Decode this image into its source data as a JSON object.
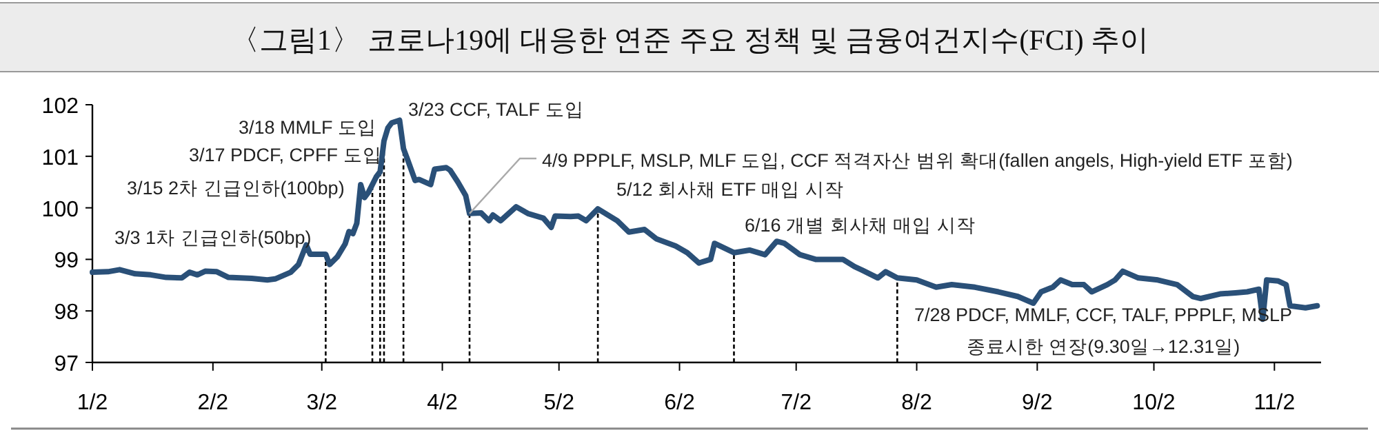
{
  "chart_data": {
    "type": "line",
    "title": "〈그림1〉 코로나19에 대응한 연준 주요 정책 및 금융여건지수(FCI) 추이",
    "color": "#2a5078",
    "marker": "none",
    "line_style": "solid",
    "grid": false,
    "legend": false,
    "x": [
      "--01-02",
      "--01-06",
      "--01-09",
      "--01-13",
      "--01-17",
      "--01-21",
      "--01-25",
      "--01-27",
      "--01-29",
      "--01-31",
      "--02-03",
      "--02-06",
      "--02-12",
      "--02-16",
      "--02-18",
      "--02-22",
      "--02-24",
      "--02-26",
      "--02-27",
      "--03-03",
      "--03-04",
      "--03-06",
      "--03-08",
      "--03-09",
      "--03-10",
      "--03-11",
      "--03-12",
      "--03-13",
      "--03-14",
      "--03-16",
      "--03-17",
      "--03-18",
      "--03-19",
      "--03-20",
      "--03-22",
      "--03-23",
      "--03-24",
      "--03-26",
      "--03-27",
      "--03-30",
      "--03-31",
      "--04-03",
      "--04-04",
      "--04-06",
      "--04-08",
      "--04-09",
      "--04-12",
      "--04-14",
      "--04-15",
      "--04-17",
      "--04-21",
      "--04-24",
      "--04-28",
      "--04-30",
      "--05-01",
      "--05-05",
      "--05-07",
      "--05-09",
      "--05-12",
      "--05-17",
      "--05-20",
      "--05-24",
      "--05-27",
      "--06-01",
      "--06-04",
      "--06-07",
      "--06-10",
      "--06-11",
      "--06-16",
      "--06-20",
      "--06-24",
      "--06-27",
      "--06-29",
      "--07-03",
      "--07-07",
      "--07-14",
      "--07-17",
      "--07-19",
      "--07-23",
      "--07-25",
      "--07-28",
      "--08-02",
      "--08-07",
      "--08-11",
      "--08-17",
      "--08-23",
      "--08-28",
      "--09-01",
      "--09-03",
      "--09-06",
      "--09-08",
      "--09-11",
      "--09-14",
      "--09-16",
      "--09-20",
      "--09-22",
      "--09-24",
      "--09-28",
      "--10-03",
      "--10-08",
      "--10-12",
      "--10-14",
      "--10-19",
      "--10-23",
      "--10-26",
      "--10-29",
      "--10-30",
      "--10-31",
      "--11-03",
      "--11-05",
      "--11-06",
      "--11-10",
      "--11-13"
    ],
    "values": [
      98.75,
      98.76,
      98.8,
      98.72,
      98.7,
      98.65,
      98.64,
      98.75,
      98.7,
      98.77,
      98.76,
      98.65,
      98.63,
      98.6,
      98.62,
      98.75,
      98.9,
      99.28,
      99.1,
      99.1,
      98.9,
      99.05,
      99.3,
      99.54,
      99.5,
      99.7,
      100.45,
      100.2,
      100.3,
      100.6,
      100.7,
      101.3,
      101.55,
      101.65,
      101.7,
      101.15,
      100.95,
      100.53,
      100.55,
      100.45,
      100.75,
      100.78,
      100.73,
      100.5,
      100.24,
      99.89,
      99.9,
      99.75,
      99.86,
      99.75,
      100.02,
      99.89,
      99.8,
      99.62,
      99.84,
      99.83,
      99.84,
      99.75,
      99.98,
      99.75,
      99.53,
      99.58,
      99.4,
      99.26,
      99.13,
      98.93,
      99.0,
      99.31,
      99.13,
      99.18,
      99.09,
      99.35,
      99.31,
      99.09,
      99.0,
      99.0,
      98.86,
      98.79,
      98.64,
      98.76,
      98.64,
      98.6,
      98.46,
      98.51,
      98.46,
      98.37,
      98.28,
      98.15,
      98.37,
      98.46,
      98.6,
      98.51,
      98.51,
      98.37,
      98.51,
      98.6,
      98.77,
      98.64,
      98.6,
      98.51,
      98.28,
      98.24,
      98.33,
      98.35,
      98.37,
      98.42,
      97.84,
      98.6,
      98.58,
      98.51,
      98.1,
      98.06,
      98.1
    ],
    "xlim": [
      "--01-02",
      "--11-14"
    ],
    "xticks": [
      {
        "value": "--01-02",
        "label": "1/2"
      },
      {
        "value": "--02-02",
        "label": "2/2"
      },
      {
        "value": "--03-02",
        "label": "3/2"
      },
      {
        "value": "--04-02",
        "label": "4/2"
      },
      {
        "value": "--05-02",
        "label": "5/2"
      },
      {
        "value": "--06-02",
        "label": "6/2"
      },
      {
        "value": "--07-02",
        "label": "7/2"
      },
      {
        "value": "--08-02",
        "label": "8/2"
      },
      {
        "value": "--09-02",
        "label": "9/2"
      },
      {
        "value": "--10-02",
        "label": "10/2"
      },
      {
        "value": "--11-02",
        "label": "11/2"
      }
    ],
    "ylim": [
      97,
      102
    ],
    "yticks": [
      97,
      98,
      99,
      100,
      101,
      102
    ],
    "ref_lines": [
      {
        "axis": "x",
        "value": "--03-03",
        "label": "3/3 1차 긴급인하(50bp)",
        "line_style": "dashed",
        "color": "#000000"
      },
      {
        "axis": "x",
        "value": "--03-15",
        "label": "3/15 2차 긴급인하(100bp)",
        "line_style": "dashed",
        "color": "#000000"
      },
      {
        "axis": "x",
        "value": "--03-17",
        "label": "3/17 PDCF, CPFF 도입",
        "line_style": "dashed",
        "color": "#000000"
      },
      {
        "axis": "x",
        "value": "--03-18",
        "label": "3/18 MMLF 도입",
        "line_style": "dashed",
        "color": "#000000"
      },
      {
        "axis": "x",
        "value": "--03-23",
        "label": "3/23 CCF, TALF 도입",
        "line_style": "dashed",
        "color": "#000000"
      },
      {
        "axis": "x",
        "value": "--04-09",
        "label": "4/9 PPPLF, MSLP, MLF 도입, CCF 적격자산 범위 확대(fallen angels, High-yield ETF 포함)",
        "line_style": "dashed",
        "color": "#000000"
      },
      {
        "axis": "x",
        "value": "--05-12",
        "label": "5/12 회사채 ETF 매입 시작",
        "line_style": "dashed",
        "color": "#000000"
      },
      {
        "axis": "x",
        "value": "--06-16",
        "label": "6/16 개별 회사채 매입 시작",
        "line_style": "dashed",
        "color": "#000000"
      },
      {
        "axis": "x",
        "value": "--07-28",
        "label": "7/28 PDCF, MMLF, CCF, TALF, PPPLF, MSLP 종료시한 연장(9.30일→12.31일)",
        "line_style": "dashed",
        "color": "#000000"
      }
    ]
  }
}
